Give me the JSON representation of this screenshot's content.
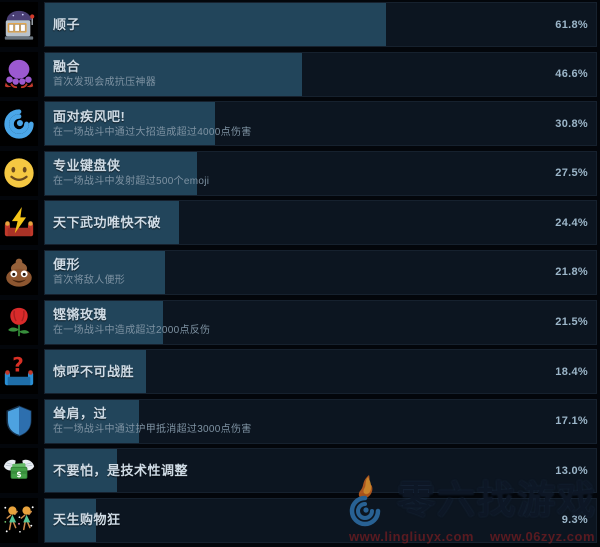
{
  "page": {
    "kind": "steam-global-achievements-list",
    "background": "#03060b"
  },
  "colors": {
    "bar_fill": "#22455b",
    "bar_background": "#0c1520",
    "icon_background": "#000000",
    "title_text": "#cfdbe5",
    "description_text": "#7f93a3",
    "percent_text": "#9cb6c9"
  },
  "achievements": [
    {
      "icon": "slot-machine-icon",
      "title": "顺子",
      "desc": "",
      "percent": 61.8,
      "percent_label": "61.8%"
    },
    {
      "icon": "octopus-icon",
      "title": "融合",
      "desc": "首次发现会成抗压神器",
      "percent": 46.6,
      "percent_label": "46.6%"
    },
    {
      "icon": "cyclone-icon",
      "title": "面对疾风吧!",
      "desc": "在一场战斗中通过大招造成超过4000点伤害",
      "percent": 30.8,
      "percent_label": "30.8%"
    },
    {
      "icon": "smiley-icon",
      "title": "专业键盘侠",
      "desc": "在一场战斗中发射超过500个emoji",
      "percent": 27.5,
      "percent_label": "27.5%"
    },
    {
      "icon": "lightning-couch-icon",
      "title": "天下武功唯快不破",
      "desc": "",
      "percent": 24.4,
      "percent_label": "24.4%"
    },
    {
      "icon": "poop-icon",
      "title": "便形",
      "desc": "首次将敌人便形",
      "percent": 21.8,
      "percent_label": "21.8%"
    },
    {
      "icon": "rose-icon",
      "title": "铿锵玫瑰",
      "desc": "在一场战斗中造成超过2000点反伤",
      "percent": 21.5,
      "percent_label": "21.5%"
    },
    {
      "icon": "question-couch-icon",
      "title": "惊呼不可战胜",
      "desc": "",
      "percent": 18.4,
      "percent_label": "18.4%"
    },
    {
      "icon": "shield-icon",
      "title": "耸肩，过",
      "desc": "在一场战斗中通过护甲抵消超过3000点伤害",
      "percent": 17.1,
      "percent_label": "17.1%"
    },
    {
      "icon": "money-wings-icon",
      "title": "不要怕，是技术性调整",
      "desc": "",
      "percent": 13.0,
      "percent_label": "13.0%"
    },
    {
      "icon": "dancers-icon",
      "title": "天生购物狂",
      "desc": "",
      "percent": 9.3,
      "percent_label": "9.3%"
    }
  ],
  "watermark": {
    "logo": "flame-swirl-logo-icon",
    "site_name": "零六找游戏",
    "url_left": "www.lingliuyx.com",
    "url_right": "www.06zyz.com"
  }
}
